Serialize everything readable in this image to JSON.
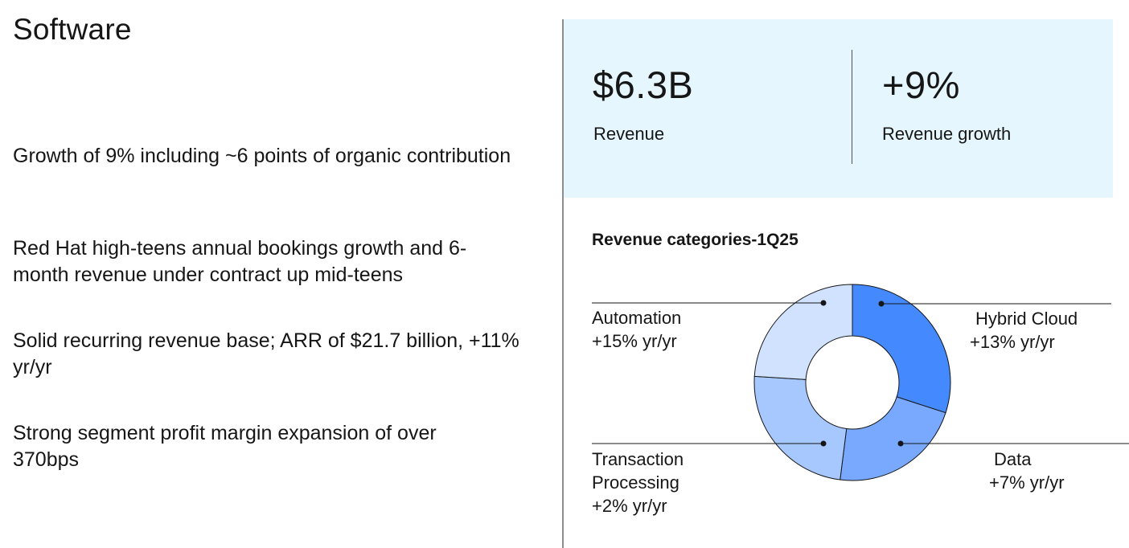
{
  "slide": {
    "title": "Software",
    "bullets": [
      "Growth of 9% including ~6 points of organic contribution",
      "Red Hat high-teens annual bookings growth and 6-month revenue under contract up mid-teens",
      "Solid recurring revenue base; ARR of $21.7 billion, +11% yr/yr",
      "Strong segment profit margin expansion of over 370bps"
    ]
  },
  "kpis": [
    {
      "value": "$6.3B",
      "label": "Revenue"
    },
    {
      "value": "+9%",
      "label": "Revenue growth"
    }
  ],
  "colors": {
    "kpi_panel_bg": "#e5f6ff",
    "hybrid_cloud": "#4589ff",
    "data": "#78a9ff",
    "transaction_processing": "#a6c8ff",
    "automation": "#d0e2ff"
  },
  "chart_data": {
    "type": "pie",
    "variant": "donut",
    "title": "Revenue categories-1Q25",
    "categories": [
      "Hybrid Cloud",
      "Data",
      "Transaction Processing",
      "Automation"
    ],
    "values": [
      30,
      22,
      24,
      24
    ],
    "units": "approx. share of segment revenue (%)",
    "growth_labels": [
      "+13% yr/yr",
      "+7% yr/yr",
      "+2% yr/yr",
      "+15% yr/yr"
    ],
    "start_angle_deg": 0,
    "direction": "clockwise from 12 o'clock"
  }
}
